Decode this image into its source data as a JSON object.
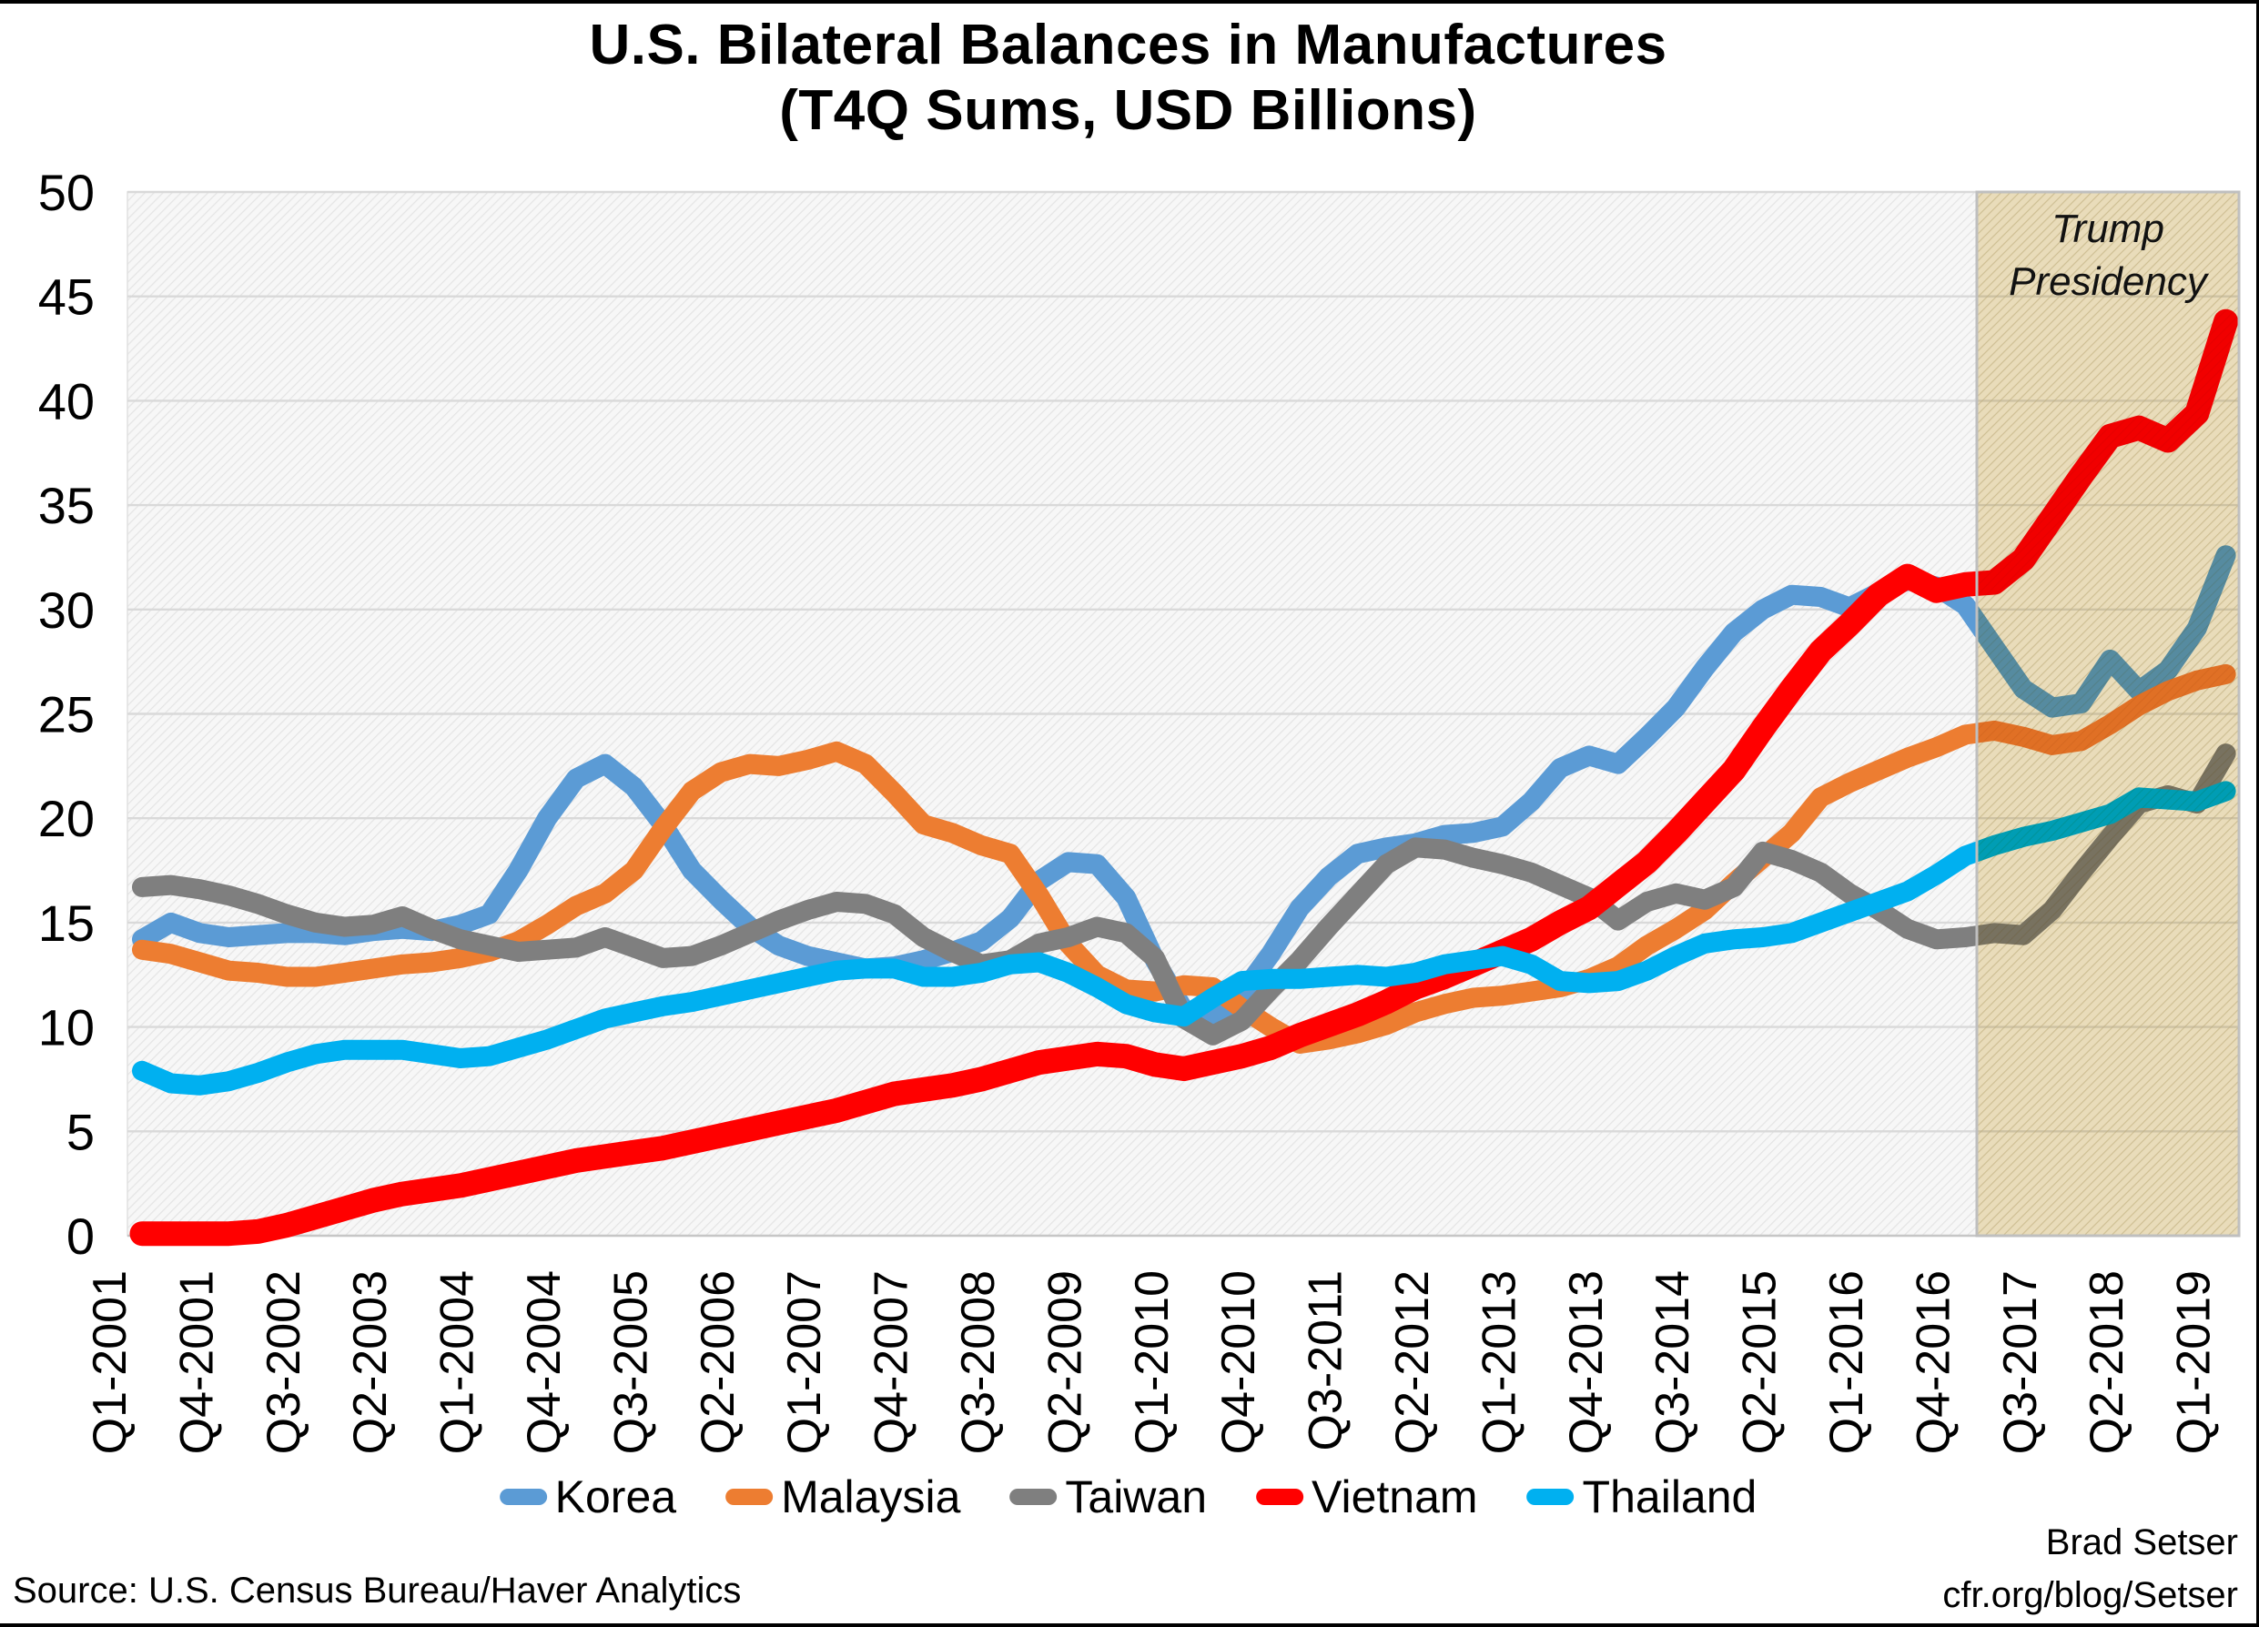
{
  "title": {
    "line1": "U.S. Bilateral Balances in Manufactures",
    "line2": "(T4Q Sums, USD Billions)"
  },
  "source": "Source: U.S. Census Bureau/Haver Analytics",
  "credit": {
    "line1": "Brad Setser",
    "line2": "cfr.org/blog/Setser"
  },
  "chart_data": {
    "type": "line",
    "title": "U.S. Bilateral Balances in Manufactures (T4Q Sums, USD Billions)",
    "x_unit": "quarter",
    "x_start": "Q1-2001",
    "x_end": "Q1-2019",
    "n_points": 73,
    "x_tick_every": 3,
    "x_tick_labels": [
      "Q1-2001",
      "Q4-2001",
      "Q3-2002",
      "Q2-2003",
      "Q1-2004",
      "Q4-2004",
      "Q3-2005",
      "Q2-2006",
      "Q1-2007",
      "Q4-2007",
      "Q3-2008",
      "Q2-2009",
      "Q1-2010",
      "Q4-2010",
      "Q3-2011",
      "Q2-2012",
      "Q1-2013",
      "Q4-2013",
      "Q3-2014",
      "Q2-2015",
      "Q1-2016",
      "Q4-2016",
      "Q3-2017",
      "Q2-2018",
      "Q1-2019"
    ],
    "ylim": [
      0,
      50
    ],
    "y_tick_step": 5,
    "grid": "horizontal",
    "gridline_color": "#D9D9D9",
    "plot_hatch_colors": {
      "base": "#F7F7F7",
      "line": "#E4E4E4"
    },
    "legend_position": "bottom",
    "shaded_region": {
      "label_line1": "Trump",
      "label_line2": "Presidency",
      "from": "Q1-2017",
      "to": "Q1-2019",
      "fill": "#F1E4C0",
      "hatch": "#E7D5A4",
      "border": "#BFBFBF"
    },
    "series": [
      {
        "name": "Korea",
        "color": "#5B9BD5",
        "stroke_width": 22,
        "values": [
          14.2,
          15.0,
          14.5,
          14.3,
          14.4,
          14.5,
          14.5,
          14.4,
          14.6,
          14.7,
          14.6,
          14.9,
          15.4,
          17.5,
          20.0,
          21.9,
          22.6,
          21.5,
          19.7,
          17.5,
          16.1,
          14.8,
          13.9,
          13.4,
          13.1,
          12.8,
          12.9,
          13.2,
          13.6,
          14.1,
          15.2,
          17.0,
          17.9,
          17.8,
          16.2,
          13.2,
          10.8,
          10.4,
          11.6,
          13.5,
          15.7,
          17.2,
          18.3,
          18.6,
          18.8,
          19.2,
          19.3,
          19.6,
          20.8,
          22.4,
          23.0,
          22.6,
          23.9,
          25.3,
          27.2,
          28.9,
          30.0,
          30.7,
          30.6,
          30.1,
          30.8,
          31.4,
          31.1,
          30.2,
          28.2,
          26.2,
          25.3,
          25.5,
          27.6,
          26.1,
          27.1,
          29.1,
          32.6
        ]
      },
      {
        "name": "Malaysia",
        "color": "#ED7D31",
        "stroke_width": 22,
        "values": [
          13.7,
          13.5,
          13.1,
          12.7,
          12.6,
          12.4,
          12.4,
          12.6,
          12.8,
          13.0,
          13.1,
          13.3,
          13.6,
          14.1,
          14.9,
          15.8,
          16.4,
          17.5,
          19.5,
          21.3,
          22.2,
          22.6,
          22.5,
          22.8,
          23.2,
          22.6,
          21.2,
          19.7,
          19.3,
          18.7,
          18.3,
          16.3,
          14.0,
          12.5,
          11.8,
          11.7,
          12.0,
          11.9,
          10.9,
          10.0,
          9.2,
          9.4,
          9.7,
          10.1,
          10.7,
          11.1,
          11.4,
          11.5,
          11.7,
          11.9,
          12.3,
          12.9,
          13.9,
          14.7,
          15.6,
          16.9,
          18.1,
          19.3,
          21.0,
          21.7,
          22.3,
          22.9,
          23.4,
          24.0,
          24.2,
          23.9,
          23.5,
          23.7,
          24.5,
          25.4,
          26.1,
          26.6,
          26.9
        ]
      },
      {
        "name": "Taiwan",
        "color": "#7F7F7F",
        "stroke_width": 22,
        "values": [
          16.7,
          16.8,
          16.6,
          16.3,
          15.9,
          15.4,
          15.0,
          14.8,
          14.9,
          15.3,
          14.7,
          14.2,
          13.9,
          13.6,
          13.7,
          13.8,
          14.3,
          13.8,
          13.3,
          13.4,
          13.9,
          14.5,
          15.1,
          15.6,
          16.0,
          15.9,
          15.4,
          14.3,
          13.6,
          13.0,
          13.2,
          14.0,
          14.3,
          14.8,
          14.5,
          13.3,
          10.4,
          9.6,
          10.3,
          11.8,
          13.2,
          14.8,
          16.3,
          17.8,
          18.6,
          18.5,
          18.1,
          17.8,
          17.4,
          16.8,
          16.2,
          15.1,
          16.0,
          16.4,
          16.1,
          16.7,
          18.4,
          18.0,
          17.4,
          16.4,
          15.6,
          14.7,
          14.2,
          14.3,
          14.5,
          14.4,
          15.6,
          17.4,
          19.1,
          20.7,
          21.1,
          20.7,
          23.1
        ]
      },
      {
        "name": "Vietnam",
        "color": "#FF0000",
        "stroke_width": 27,
        "values": [
          0.1,
          0.1,
          0.1,
          0.1,
          0.2,
          0.5,
          0.9,
          1.3,
          1.7,
          2.0,
          2.2,
          2.4,
          2.7,
          3.0,
          3.3,
          3.6,
          3.8,
          4.0,
          4.2,
          4.5,
          4.8,
          5.1,
          5.4,
          5.7,
          6.0,
          6.4,
          6.8,
          7.0,
          7.2,
          7.5,
          7.9,
          8.3,
          8.5,
          8.7,
          8.6,
          8.2,
          8.0,
          8.3,
          8.6,
          9.0,
          9.6,
          10.1,
          10.6,
          11.2,
          11.9,
          12.4,
          13.0,
          13.6,
          14.2,
          15.0,
          15.7,
          16.8,
          17.9,
          19.3,
          20.8,
          22.3,
          24.3,
          26.2,
          28.0,
          29.3,
          30.7,
          31.6,
          30.9,
          31.2,
          31.3,
          32.4,
          34.4,
          36.4,
          38.3,
          38.7,
          38.1,
          39.4,
          43.8
        ]
      },
      {
        "name": "Thailand",
        "color": "#00B0F0",
        "stroke_width": 22,
        "values": [
          7.9,
          7.3,
          7.2,
          7.4,
          7.8,
          8.3,
          8.7,
          8.9,
          8.9,
          8.9,
          8.7,
          8.5,
          8.6,
          9.0,
          9.4,
          9.9,
          10.4,
          10.7,
          11.0,
          11.2,
          11.5,
          11.8,
          12.1,
          12.4,
          12.7,
          12.8,
          12.8,
          12.4,
          12.4,
          12.6,
          13.0,
          13.1,
          12.6,
          11.9,
          11.1,
          10.7,
          10.5,
          11.4,
          12.2,
          12.3,
          12.3,
          12.4,
          12.5,
          12.4,
          12.6,
          13.0,
          13.2,
          13.4,
          13.0,
          12.2,
          12.1,
          12.2,
          12.7,
          13.4,
          14.0,
          14.2,
          14.3,
          14.5,
          15.0,
          15.5,
          16.0,
          16.5,
          17.3,
          18.2,
          18.7,
          19.1,
          19.4,
          19.8,
          20.2,
          21.0,
          20.9,
          20.8,
          21.3
        ]
      }
    ]
  }
}
